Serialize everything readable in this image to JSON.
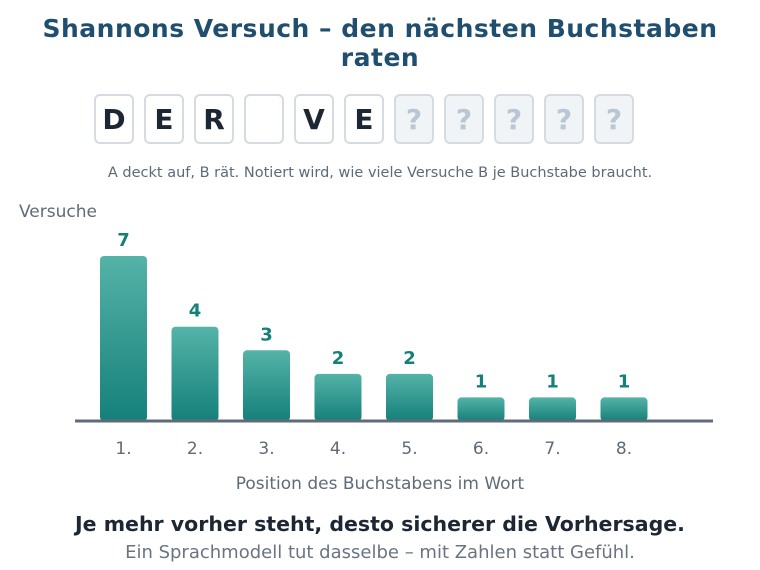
{
  "title": "Shannons Versuch – den nächsten Buchstaben raten",
  "tiles": [
    "D",
    "E",
    "R",
    "",
    "V",
    "E",
    "?",
    "?",
    "?",
    "?",
    "?"
  ],
  "caption": "A deckt auf, B rät. Notiert wird, wie viele Versuche B je Buchstabe braucht.",
  "chart_data": {
    "type": "bar",
    "ylabel": "Versuche",
    "xlabel": "Position des Buchstabens im Wort",
    "categories": [
      "1.",
      "2.",
      "3.",
      "4.",
      "5.",
      "6.",
      "7.",
      "8."
    ],
    "values": [
      7,
      4,
      3,
      2,
      2,
      1,
      1,
      1
    ],
    "ylim": [
      0,
      7
    ],
    "grid": false,
    "bar_color": "#2e9a8c",
    "label_color": "#14807a",
    "axis_color": "#5f6b78"
  },
  "footer": {
    "headline": "Je mehr vorher steht, desto sicherer die Vorhersage.",
    "subline": "Ein Sprachmodell tut dasselbe – mit Zahlen statt Gefühl."
  }
}
